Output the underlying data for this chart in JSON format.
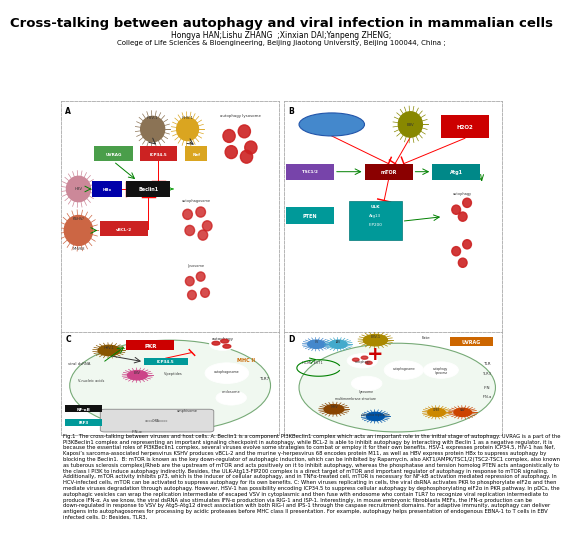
{
  "title": "Cross-talking between autophagy and viral infection in mammalian cells",
  "authors": "Hongya HAN;Lishu ZHANG  ;Xinxian DAI;Yanpeng ZHENG;",
  "affiliation": "College of Life Sciences & Bioengineering, Beijing Jiaotong University, Beijing 100044, China ;",
  "fig_caption": "Fig.1  The cross-talking between viruses and host cells. A: Beclin1 is a component PI3KBeclin1 complex which acts an important role in the initial stage of autophagy. UVRAG is a part of the PI3KBeclin1 complex and representing an important signaling checkpoint in autophagy, while BCL-2 is able to inhibit autophagy by interacting with Beclin 1 as a negative regulator, it is because the essential roles of PI3KBeclin1 complex, several viruses evolve some strategies to combat or employ it for their own benefits. HSV-1 expresses protein ICP34.5, HIV-1 has Nef, Kaposi’s sarcoma-associated herpesvirus KSHV produces vBCL-2 and the murine γ-herpesvirus 68 encodes protein M11, as well as HBV express protein HBx to suppress autophagy by blocking the Beclin1.  B: mTOR is known as the key down-regulator of autophagic induction, which can be inhibited by Rapamycin, also AKT1/AMPK/TSC1/2(TSC2-TSC1 complex, also known as tuberous sclerosis complex)/Rheb are the upstream of mTOR and acts positively on it to inhibit autophagy, whereas the phosphatase and tension homolog PTEN acts antagonistically to the class I PI3K to induce autophagy indirectly. Besides, the ULK-Atg13-FIP200 complex is a direct target of mTOR and important regulator of autophagy in response to mTOR signaling. Additionally, mTOR activity inhibits p73, which is the inducer of cellular autophagy, and in TNFα-treated cell, mTOR is necessary for NF-kB activation mediated repression of autophagy. In HCV-infected cells, mTOR can be activated to suppress autophagy for its own benefits. C: When viruses replicating in cells, the viral dsRNA activates PKR to phosphorylate eIF2α and then mediate viruses degradation through autophagy. However, HSV-1 has possibility encoding ICP34.5 to suppress cellular autophagy by dephosphorylating eIF2α in PKR pathway. In pDCs, the autophagic vesicles can wrap the replication intermediate of escaped VSV in cytoplasmic and then fuse with endosome who contain TLR7 to recognize viral replication intermediate to produce IFN-α. As we know, the viral dsRNA also stimulates IFN-α production via RIG-1 and ISP-1. Interestingly, in mouse embryonic fibroblasts MEFs, the IFN-α production can be down-regulated in response to VSV by Atg5-Atg12 direct association with both RIG-I and IPS-1 through the caspase recruitment domains. For adaptive immunity, autophagy can deliver antigens into autophagosomes for processing by acidic proteases before MHC class II presentation. For example, autophagy helps presentation of endogenous EBNA-1 to T cells in EBV infected cells. D: Besides, TLR3,",
  "background": "#ffffff",
  "title_fontsize": 9.5,
  "authors_fontsize": 5.5,
  "affil_fontsize": 5.0,
  "caption_fontsize": 3.8
}
